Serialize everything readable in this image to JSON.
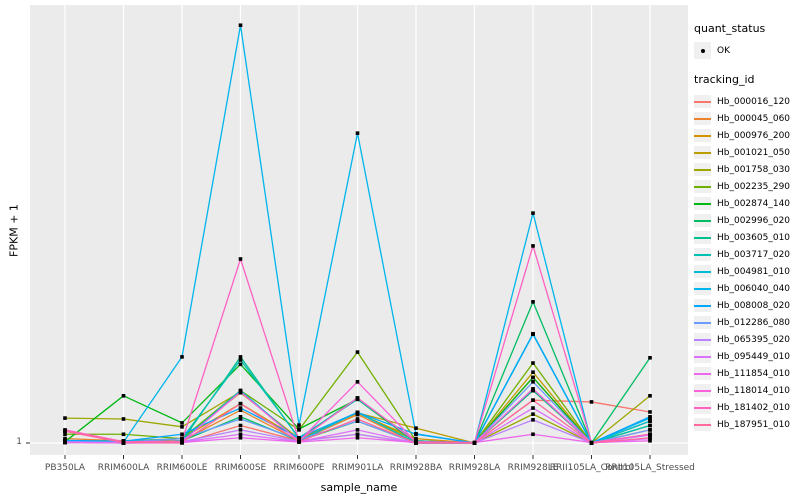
{
  "figure": {
    "bg": "#FFFFFF",
    "panel_bg": "#EBEBEB",
    "grid_color": "#FFFFFF",
    "tick_mark_color": "#333333",
    "tick_text_color": "#4D4D4D",
    "axis_title_color": "#000000",
    "marker_color": "#000000"
  },
  "chart_data": {
    "type": "line",
    "title": "",
    "xlabel": "sample_name",
    "ylabel": "FPKM + 1",
    "x_categories": [
      "PB350LA",
      "RRIM600LA",
      "RRIM600LE",
      "RRIM600SE",
      "RRIM600PE",
      "RRIM901LA",
      "RRIM928BA",
      "RRIM928LA",
      "RRIM928LE",
      "RRII105LA_Control",
      "RRII105LA_Stressed"
    ],
    "y_axis": {
      "scale": "log (FPKM + 1), only break shown is 1",
      "visible_ticks": [
        "1"
      ],
      "note": "series values are fractions of panel height above the y=1 baseline, estimated from pixels"
    },
    "legend_position": "right",
    "grid": "white major gridlines on gray panel",
    "series": [
      {
        "name": "Hb_000016_120",
        "color": "#F8766D",
        "values": [
          0.005,
          0,
          0,
          0.04,
          0.005,
          0.02,
          0,
          0,
          0.098,
          0.094,
          0.071
        ]
      },
      {
        "name": "Hb_000045_060",
        "color": "#E9842C",
        "values": [
          0.01,
          0.005,
          0.005,
          0.075,
          0.005,
          0.065,
          0,
          0,
          0.12,
          0,
          0.02
        ]
      },
      {
        "name": "Hb_000976_200",
        "color": "#D69100",
        "values": [
          0.005,
          0,
          0.01,
          0.09,
          0.01,
          0.068,
          0.01,
          0,
          0.15,
          0,
          0.03
        ]
      },
      {
        "name": "Hb_001021_050",
        "color": "#BC9D00",
        "values": [
          0.005,
          0.005,
          0.01,
          0.115,
          0.01,
          0.069,
          0.034,
          0,
          0.162,
          0,
          0.02
        ]
      },
      {
        "name": "Hb_001758_030",
        "color": "#9CA700",
        "values": [
          0.057,
          0.055,
          0.037,
          0.117,
          0.007,
          0.07,
          0.005,
          0,
          0.066,
          0,
          0.108
        ]
      },
      {
        "name": "Hb_002235_290",
        "color": "#6FB000",
        "values": [
          0.02,
          0.02,
          0.01,
          0.12,
          0.03,
          0.208,
          0.005,
          0,
          0.183,
          0,
          0.05
        ]
      },
      {
        "name": "Hb_002874_140",
        "color": "#00B813",
        "values": [
          0.003,
          0.108,
          0.046,
          0.18,
          0.032,
          0.1,
          0,
          0,
          0.15,
          0,
          0.04
        ]
      },
      {
        "name": "Hb_002996_020",
        "color": "#00BD61",
        "values": [
          0.002,
          0,
          0.005,
          0.06,
          0.005,
          0.05,
          0,
          0,
          0.323,
          0,
          0.195
        ]
      },
      {
        "name": "Hb_003605_010",
        "color": "#00C08E",
        "values": [
          0.001,
          0.003,
          0.004,
          0.197,
          0.01,
          0.103,
          0,
          0,
          0.12,
          0,
          0.02
        ]
      },
      {
        "name": "Hb_003717_020",
        "color": "#00C0B4",
        "values": [
          0.002,
          0.004,
          0.01,
          0.19,
          0.012,
          0.1,
          0.005,
          0,
          0.25,
          0,
          0.04
        ]
      },
      {
        "name": "Hb_004981_010",
        "color": "#00BDD4",
        "values": [
          0.003,
          0,
          0.005,
          0.12,
          0.005,
          0.07,
          0,
          0,
          0.249,
          0,
          0.05
        ]
      },
      {
        "name": "Hb_006040_040",
        "color": "#00B5EC",
        "values": [
          0.004,
          0.002,
          0.197,
          0.956,
          0.041,
          0.709,
          0.021,
          0,
          0.526,
          0,
          0.057
        ]
      },
      {
        "name": "Hb_008008_020",
        "color": "#00A7FF",
        "values": [
          0.006,
          0.004,
          0.02,
          0.08,
          0.012,
          0.07,
          0.02,
          0,
          0.249,
          0,
          0.06
        ]
      },
      {
        "name": "Hb_012286_080",
        "color": "#6E9BFF",
        "values": [
          0.003,
          0.002,
          0.01,
          0.055,
          0.008,
          0.05,
          0,
          0,
          0.14,
          0,
          0.03
        ]
      },
      {
        "name": "Hb_065395_020",
        "color": "#B983FF",
        "values": [
          0.002,
          0,
          0.003,
          0.03,
          0.004,
          0.02,
          0,
          0,
          0.053,
          0,
          0.018
        ]
      },
      {
        "name": "Hb_095449_010",
        "color": "#DC71FA",
        "values": [
          0.002,
          0,
          0.002,
          0.02,
          0.003,
          0.03,
          0,
          0,
          0.08,
          0,
          0.01
        ]
      },
      {
        "name": "Hb_111854_010",
        "color": "#ED68ED",
        "values": [
          0.001,
          0,
          0.001,
          0.012,
          0.002,
          0.012,
          0.001,
          0.001,
          0.02,
          0.001,
          0.005
        ]
      },
      {
        "name": "Hb_118014_010",
        "color": "#FA62DB",
        "values": [
          0.027,
          0.002,
          0.003,
          0.117,
          0.004,
          0.14,
          0.002,
          0,
          0.124,
          0,
          0.02
        ]
      },
      {
        "name": "Hb_181402_010",
        "color": "#FF61C2",
        "values": [
          0.03,
          0.003,
          0.004,
          0.421,
          0.006,
          0.103,
          0.003,
          0.001,
          0.451,
          0.001,
          0.02
        ]
      },
      {
        "name": "Hb_187951_010",
        "color": "#FF6A9A",
        "values": [
          0.027,
          0.001,
          0.002,
          0.09,
          0.003,
          0.055,
          0,
          0,
          0.098,
          0,
          0.012
        ]
      }
    ]
  },
  "legend": {
    "quant_status_title": "quant_status",
    "quant_status_items": [
      {
        "label": "OK",
        "marker": "black-point"
      }
    ],
    "tracking_id_title": "tracking_id"
  }
}
